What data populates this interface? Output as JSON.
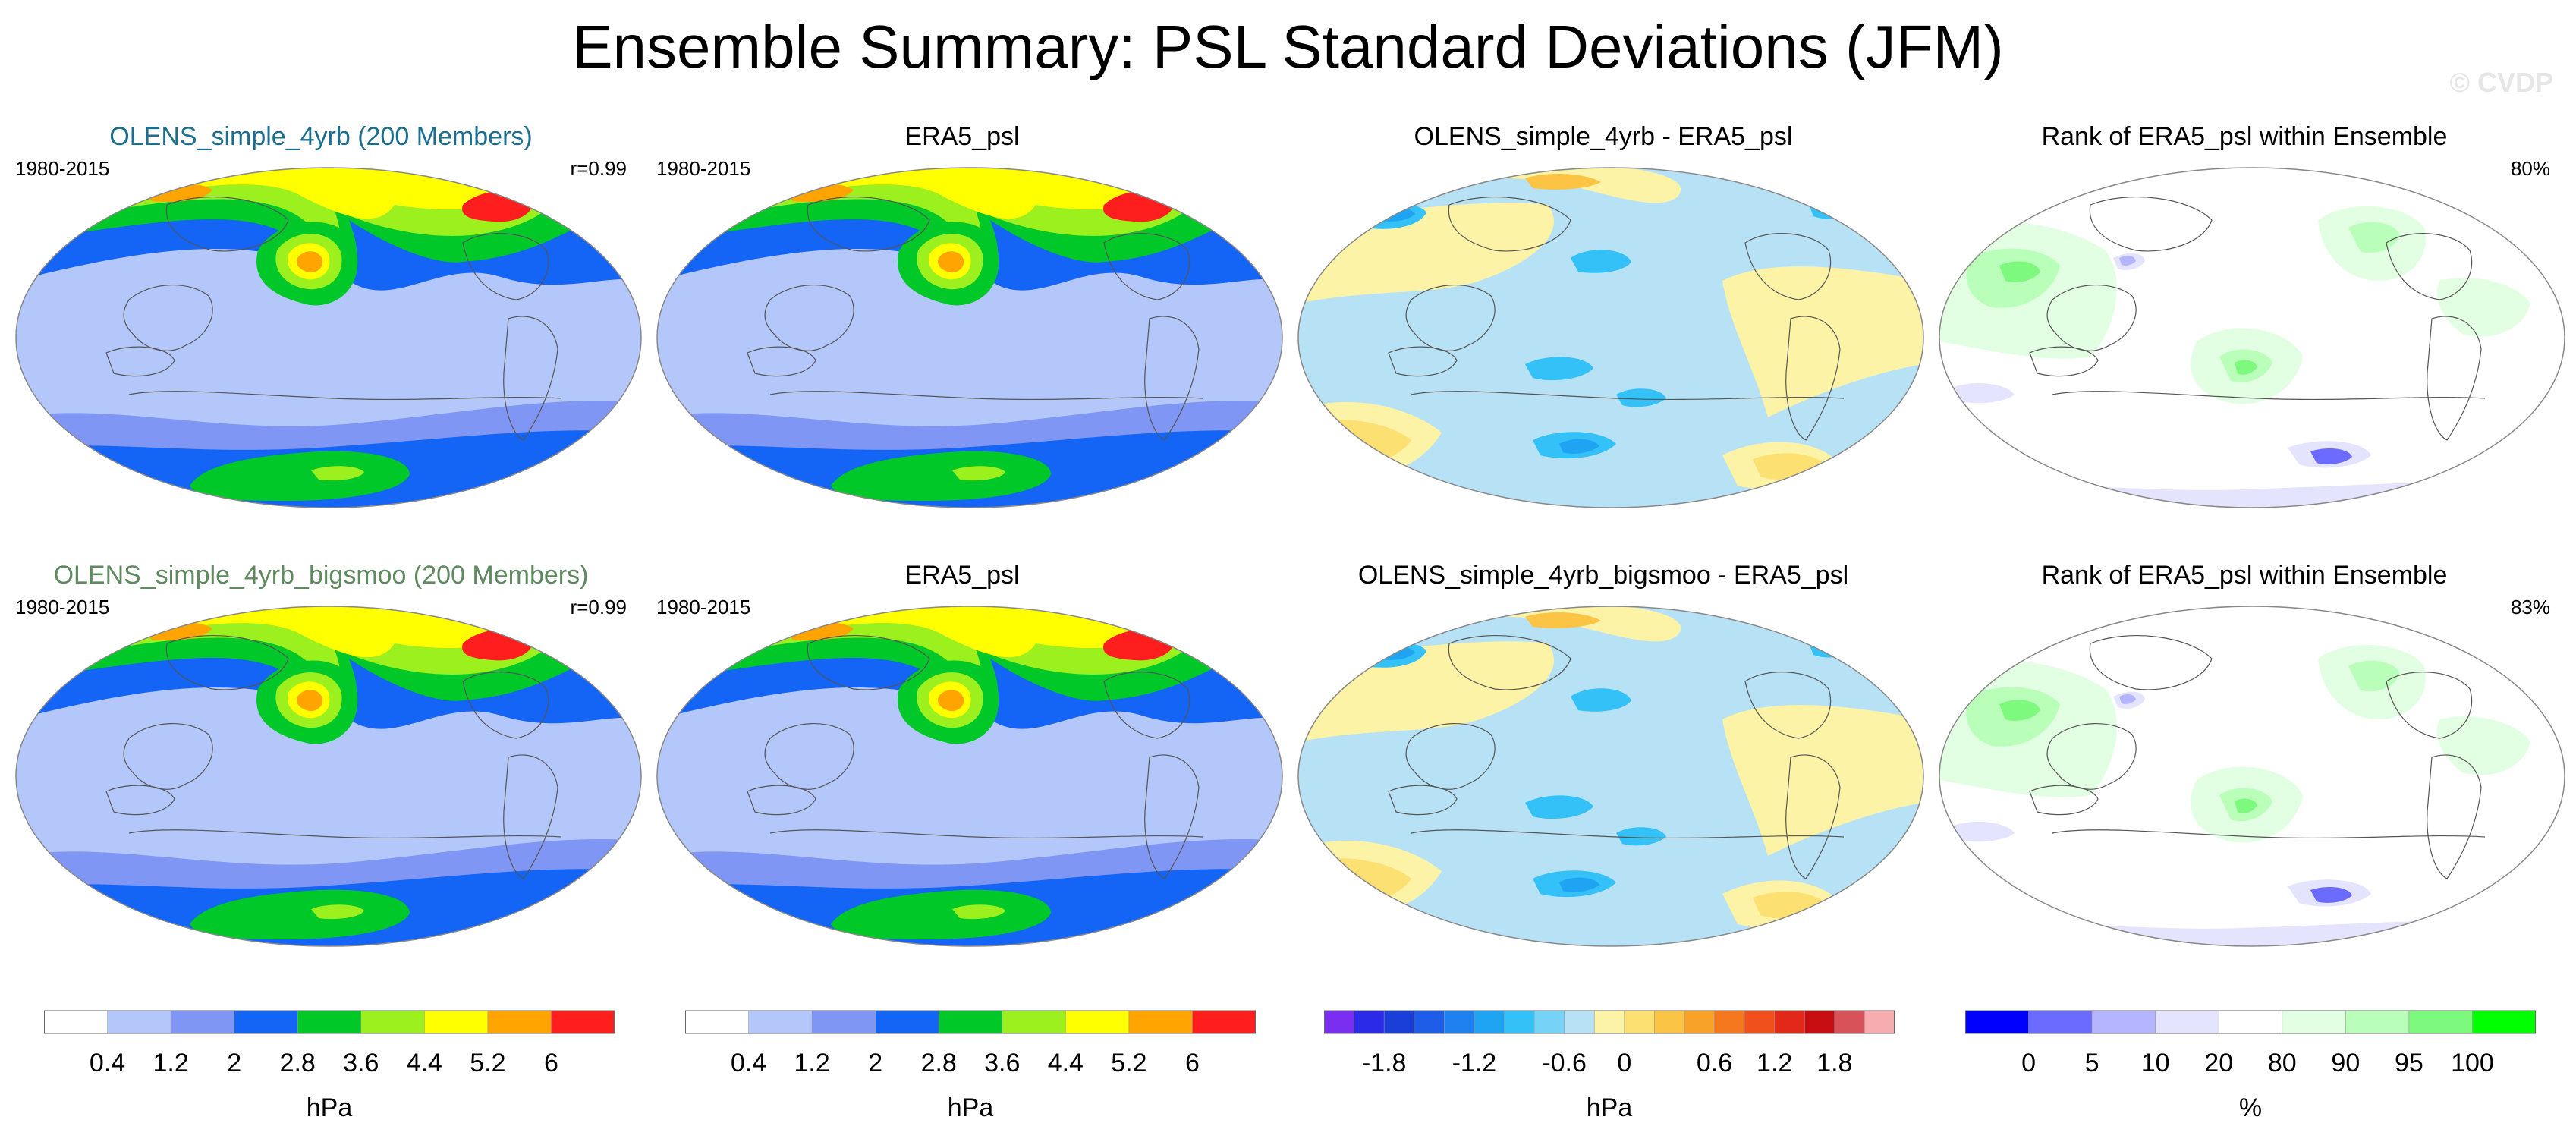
{
  "title": "Ensemble Summary: PSL Standard Deviations (JFM)",
  "watermark": "© CVDP",
  "colors": {
    "title_blue": "#1b6e8e",
    "title_green": "#5f8a5f",
    "std_levels": [
      "#ffffff",
      "#b4c7fb",
      "#7f96f4",
      "#1464f5",
      "#00c828",
      "#9bf01e",
      "#ffff00",
      "#ffa400",
      "#ff1e1e"
    ],
    "diff_levels": [
      "#7a2ff0",
      "#2a2ae8",
      "#1a3fd8",
      "#1e5de8",
      "#1f80f0",
      "#1ea4f2",
      "#33c1f8",
      "#74d3f7",
      "#b7e2f5",
      "#fdf3a6",
      "#fde072",
      "#fbc444",
      "#f9a22a",
      "#f6781e",
      "#f0501b",
      "#e22818",
      "#c80e11",
      "#d8525a",
      "#f7adb0"
    ],
    "rank_levels": [
      "#0000ff",
      "#6b6bff",
      "#b5b5ff",
      "#e4e4ff",
      "#ffffff",
      "#e3ffe3",
      "#b9ffb9",
      "#7dfa7d",
      "#00ff00"
    ]
  },
  "panels": [
    {
      "title": "OLENS_simple_4yrb (200 Members)",
      "title_color": "title_blue",
      "years": "1980-2015",
      "stat": "r=0.99",
      "kind": "std"
    },
    {
      "title": "ERA5_psl",
      "title_color": "",
      "years": "1980-2015",
      "stat": "",
      "kind": "std"
    },
    {
      "title": "OLENS_simple_4yrb - ERA5_psl",
      "title_color": "",
      "years": "",
      "stat": "",
      "kind": "diff"
    },
    {
      "title": "Rank of ERA5_psl within Ensemble",
      "title_color": "",
      "years": "",
      "stat": "80%",
      "kind": "rank"
    },
    {
      "title": "OLENS_simple_4yrb_bigsmoo (200 Members)",
      "title_color": "title_green",
      "years": "1980-2015",
      "stat": "r=0.99",
      "kind": "std"
    },
    {
      "title": "ERA5_psl",
      "title_color": "",
      "years": "1980-2015",
      "stat": "",
      "kind": "std"
    },
    {
      "title": "OLENS_simple_4yrb_bigsmoo - ERA5_psl",
      "title_color": "",
      "years": "",
      "stat": "",
      "kind": "diff"
    },
    {
      "title": "Rank of ERA5_psl within Ensemble",
      "title_color": "",
      "years": "",
      "stat": "83%",
      "kind": "rank"
    }
  ],
  "chart_data": {
    "type": "heatmap",
    "projection": "global map (Pacific-centered)",
    "colorbars": [
      {
        "kind": "std",
        "unit": "hPa",
        "tick_labels": [
          "0.4",
          "1.2",
          "2",
          "2.8",
          "3.6",
          "4.4",
          "5.2",
          "6"
        ],
        "levels": [
          0.4,
          1.2,
          2,
          2.8,
          3.6,
          4.4,
          5.2,
          6
        ]
      },
      {
        "kind": "std",
        "unit": "hPa",
        "tick_labels": [
          "0.4",
          "1.2",
          "2",
          "2.8",
          "3.6",
          "4.4",
          "5.2",
          "6"
        ],
        "levels": [
          0.4,
          1.2,
          2,
          2.8,
          3.6,
          4.4,
          5.2,
          6
        ]
      },
      {
        "kind": "diff",
        "unit": "hPa",
        "tick_labels": [
          "-1.8",
          "-1.2",
          "-0.6",
          "0",
          "0.6",
          "1.2",
          "1.8"
        ],
        "levels": [
          -2.1,
          -1.8,
          -1.65,
          -1.5,
          -1.2,
          -1.05,
          -0.9,
          -0.6,
          -0.3,
          0,
          0.3,
          0.45,
          0.6,
          0.9,
          1.2,
          1.5,
          1.8,
          2.1
        ]
      },
      {
        "kind": "rank",
        "unit": "%",
        "tick_labels": [
          "0",
          "5",
          "10",
          "20",
          "80",
          "90",
          "95",
          "100"
        ],
        "levels": [
          0,
          5,
          10,
          20,
          80,
          90,
          95,
          100
        ]
      }
    ]
  }
}
